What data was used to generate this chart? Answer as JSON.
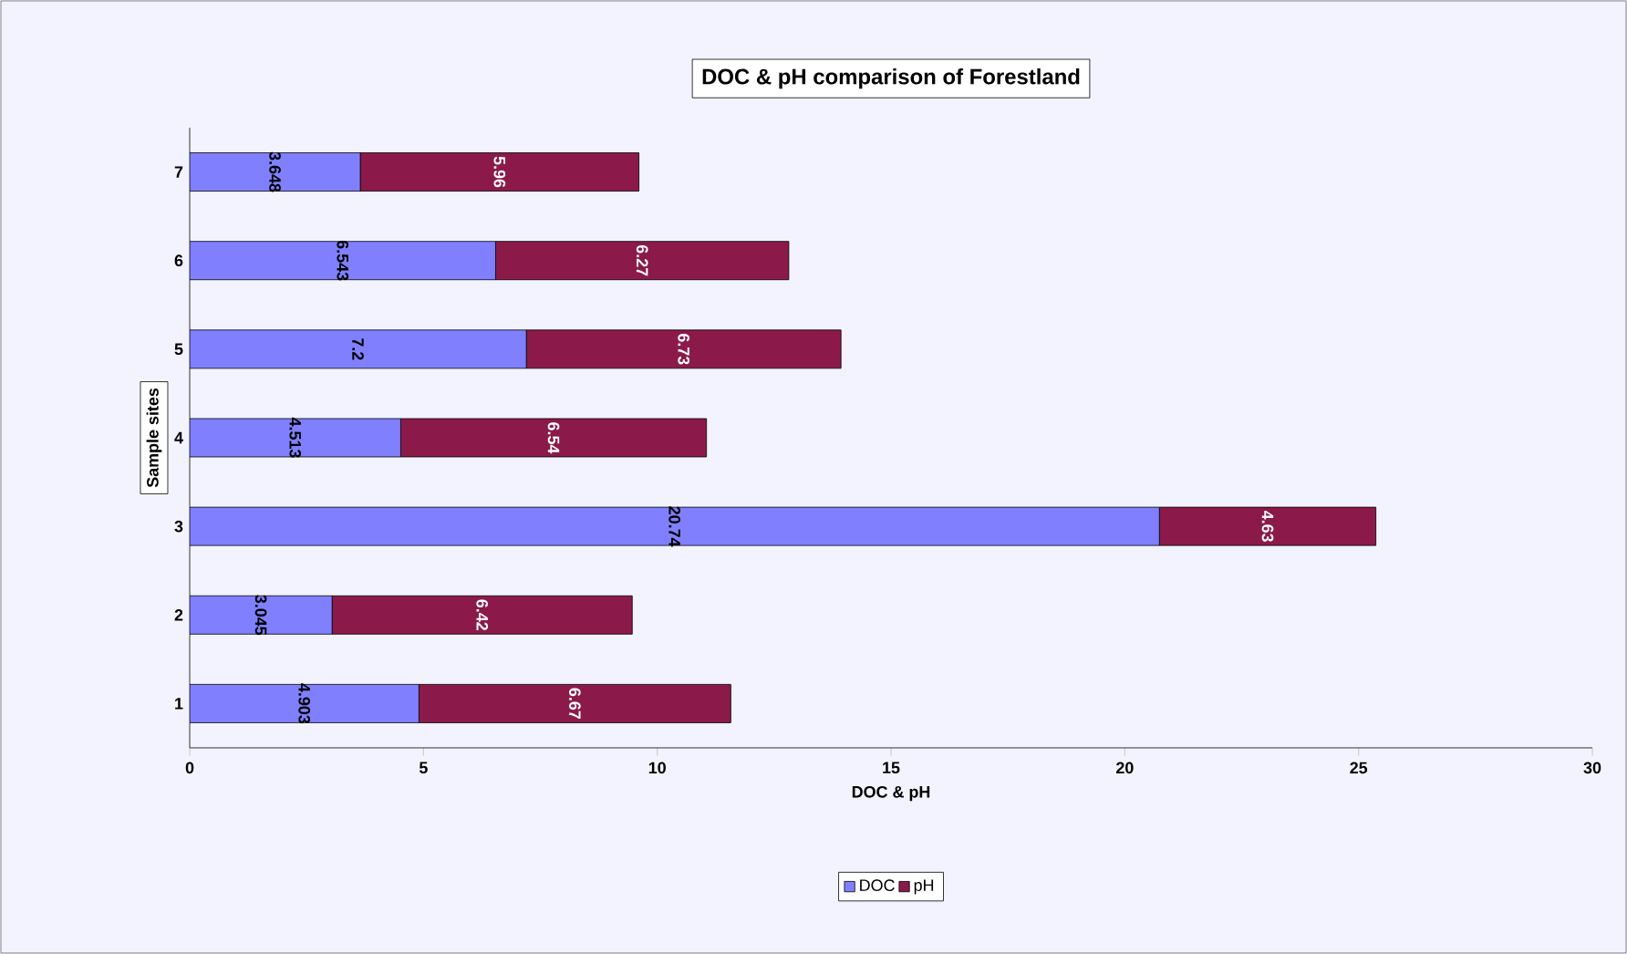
{
  "chart_data": {
    "type": "bar",
    "orientation": "horizontal",
    "stacked": true,
    "title": "DOC & pH comparison of Forestland",
    "xlabel": "DOC & pH",
    "ylabel": "Sample sites",
    "categories": [
      "7",
      "6",
      "5",
      "4",
      "3",
      "2",
      "1"
    ],
    "series": [
      {
        "name": "DOC",
        "color": "#8080ff",
        "values": [
          3.648,
          6.543,
          7.2,
          4.513,
          20.74,
          3.045,
          4.903
        ]
      },
      {
        "name": "pH",
        "color": "#8b1a4a",
        "values": [
          5.96,
          6.27,
          6.73,
          6.54,
          4.63,
          6.42,
          6.67
        ]
      }
    ],
    "xlim": [
      0,
      30
    ],
    "xticks": [
      0,
      5,
      10,
      15,
      20,
      25,
      30
    ],
    "data_labels": true,
    "legend": "bottom",
    "grid": false
  }
}
